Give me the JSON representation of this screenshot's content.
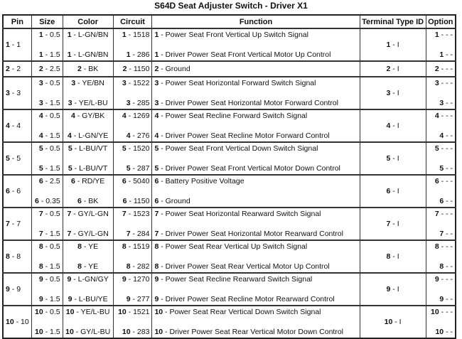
{
  "title": "S64D Seat Adjuster Switch - Driver X1",
  "headers": [
    "Pin",
    "Size",
    "Color",
    "Circuit",
    "Function",
    "Terminal Type ID",
    "Option"
  ],
  "pins": [
    {
      "num": "1",
      "pin": "1",
      "terminal": "I",
      "lines": [
        {
          "size": "0.5",
          "color": "L-GN/BN",
          "circuit": "1518",
          "function": "Power Seat Front Vertical Up Switch Signal",
          "option": "- -"
        },
        {
          "size": "1.5",
          "color": "L-GN/BN",
          "circuit": "286",
          "function": "Driver Power Seat Front Vertical Motor Up Control",
          "option": "-"
        }
      ]
    },
    {
      "num": "2",
      "pin": "2",
      "terminal": "I",
      "lines": [
        {
          "size": "2.5",
          "color": "BK",
          "circuit": "1150",
          "function": "Ground",
          "option": "- -"
        }
      ]
    },
    {
      "num": "3",
      "pin": "3",
      "terminal": "I",
      "lines": [
        {
          "size": "0.5",
          "color": "YE/BN",
          "circuit": "1522",
          "function": "Power Seat Horizontal Forward Switch Signal",
          "option": "- -"
        },
        {
          "size": "1.5",
          "color": "YE/L-BU",
          "circuit": "285",
          "function": "Driver Power Seat Horizontal Motor Forward Control",
          "option": "-"
        }
      ]
    },
    {
      "num": "4",
      "pin": "4",
      "terminal": "I",
      "lines": [
        {
          "size": "0.5",
          "color": "GY/BK",
          "circuit": "1269",
          "function": "Power Seat Recline Forward Switch Signal",
          "option": "- -"
        },
        {
          "size": "1.5",
          "color": "L-GN/YE",
          "circuit": "276",
          "function": "Driver Power Seat Recline Motor Forward Control",
          "option": "-"
        }
      ]
    },
    {
      "num": "5",
      "pin": "5",
      "terminal": "I",
      "lines": [
        {
          "size": "0.5",
          "color": "L-BU/VT",
          "circuit": "1520",
          "function": "Power Seat Front Vertical Down Switch Signal",
          "option": "- -"
        },
        {
          "size": "1.5",
          "color": "L-BU/VT",
          "circuit": "287",
          "function": "Driver Power Seat Front Vertical Motor Down Control",
          "option": "-"
        }
      ]
    },
    {
      "num": "6",
      "pin": "6",
      "terminal": "I",
      "lines": [
        {
          "size": "2.5",
          "color": "RD/YE",
          "circuit": "5040",
          "function": "Battery Positive Voltage",
          "option": "- -"
        },
        {
          "size": "0.35",
          "color": "BK",
          "circuit": "1150",
          "function": "Ground",
          "option": "-"
        }
      ]
    },
    {
      "num": "7",
      "pin": "7",
      "terminal": "I",
      "lines": [
        {
          "size": "0.5",
          "color": "GY/L-GN",
          "circuit": "1523",
          "function": "Power Seat Horizontal Rearward Switch Signal",
          "option": "- -"
        },
        {
          "size": "1.5",
          "color": "GY/L-GN",
          "circuit": "284",
          "function": "Driver Power Seat Horizontal Motor Rearward Control",
          "option": "-"
        }
      ]
    },
    {
      "num": "8",
      "pin": "8",
      "terminal": "I",
      "lines": [
        {
          "size": "0.5",
          "color": "YE",
          "circuit": "1519",
          "function": "Power Seat Rear Vertical Up Switch Signal",
          "option": "- -"
        },
        {
          "size": "1.5",
          "color": "YE",
          "circuit": "282",
          "function": "Driver Power Seat Rear Vertical Motor Up Control",
          "option": "-"
        }
      ]
    },
    {
      "num": "9",
      "pin": "9",
      "terminal": "I",
      "lines": [
        {
          "size": "0.5",
          "color": "L-GN/GY",
          "circuit": "1270",
          "function": "Power Seat Recline Rearward Switch Signal",
          "option": "- -"
        },
        {
          "size": "1.5",
          "color": "L-BU/YE",
          "circuit": "277",
          "function": "Driver Power Seat Recline Motor Rearward Control",
          "option": "-"
        }
      ]
    },
    {
      "num": "10",
      "pin": "10",
      "terminal": "I",
      "lines": [
        {
          "size": "0.5",
          "color": "YE/L-BU",
          "circuit": "1521",
          "function": "Power Seat Rear Vertical Down Switch Signal",
          "option": "- -"
        },
        {
          "size": "1.5",
          "color": "GY/L-BU",
          "circuit": "283",
          "function": "Driver Power Seat Rear Vertical Motor Down Control",
          "option": "-"
        }
      ]
    }
  ]
}
